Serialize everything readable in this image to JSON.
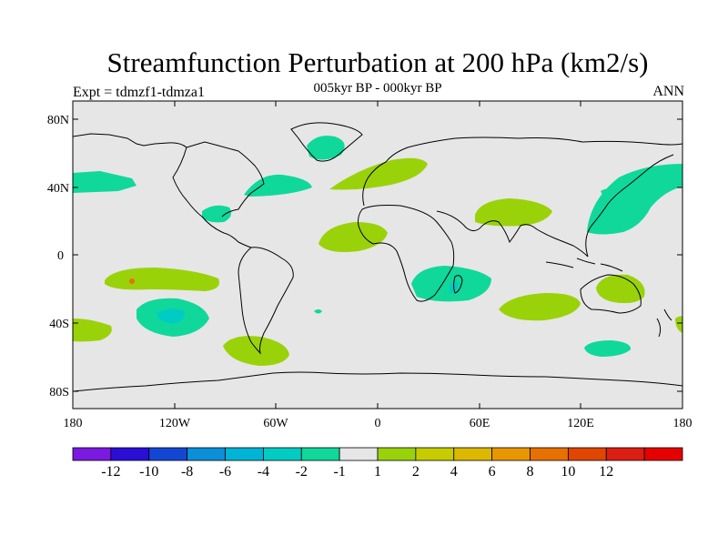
{
  "title": "Streamfunction Perturbation at 200 hPa (km2/s)",
  "subtitle_left": "Expt = tdmzf1-tdmza1",
  "subtitle_center": "005kyr BP - 000kyr BP",
  "subtitle_right": "ANN",
  "lat_labels": [
    "80N",
    "40N",
    "0",
    "40S",
    "80S"
  ],
  "lon_labels": [
    "180",
    "120W",
    "60W",
    "0",
    "60E",
    "120E",
    "180"
  ],
  "colorbar": {
    "colors": [
      "#7a19e0",
      "#2b0ed6",
      "#1446d4",
      "#0a8fd9",
      "#00b4d6",
      "#00ccc4",
      "#0fd89a",
      "#e6e6e6",
      "#9ad20a",
      "#c7cc00",
      "#dcb800",
      "#e89700",
      "#e67000",
      "#e04600",
      "#dc1e12",
      "#e60000"
    ],
    "labels": [
      "-12",
      "-10",
      "-8",
      "-6",
      "-4",
      "-2",
      "-1",
      "1",
      "2",
      "4",
      "6",
      "8",
      "10",
      "12"
    ]
  },
  "colors": {
    "background": "#e6e6e6",
    "pos_light": "#9ad20a",
    "neg_light": "#0fd89a",
    "neg_mid": "#00ccc4",
    "neg_strong": "#00b4d6",
    "orange": "#e67000"
  }
}
